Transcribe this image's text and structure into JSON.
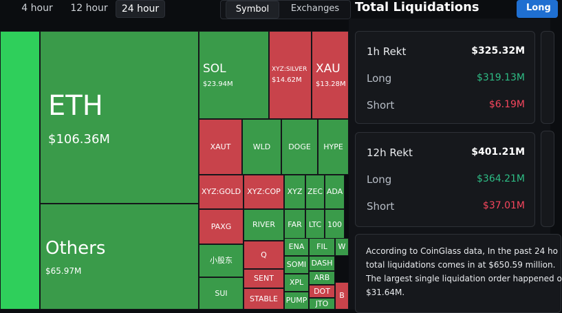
{
  "tabs": [
    "4 hour",
    "12 hour",
    "24 hour"
  ],
  "active_tab": 2,
  "toggle": [
    "Symbol",
    "Exchanges"
  ],
  "active_toggle": 0,
  "title": "Total Liquidations",
  "button": "Long",
  "treemap": [
    {
      "label": "ETH",
      "value": "$106.36M",
      "color": "#3a9b4a"
    },
    {
      "label": "Others",
      "value": "$65.97M",
      "color": "#3a9b4a"
    },
    {
      "label": "SOL",
      "value": "$23.94M",
      "color": "#3a9b4a"
    },
    {
      "label": "XYZ:SILVER",
      "value": "$14.62M",
      "color": "#c8434b"
    },
    {
      "label": "XAU",
      "value": "$13.28M",
      "color": "#c8434b"
    },
    {
      "label": "XAUT",
      "color": "#c8434b"
    },
    {
      "label": "WLD",
      "color": "#3a9b4a"
    },
    {
      "label": "DOGE",
      "color": "#3a9b4a"
    },
    {
      "label": "HYPE",
      "color": "#3a9b4a"
    },
    {
      "label": "XYZ:GOLD",
      "color": "#c8434b"
    },
    {
      "label": "XYZ:COP",
      "color": "#c8434b"
    },
    {
      "label": "XYZ",
      "color": "#3a9b4a"
    },
    {
      "label": "ZEC",
      "color": "#3a9b4a"
    },
    {
      "label": "ADA",
      "color": "#3a9b4a"
    },
    {
      "label": "PAXG",
      "color": "#c8434b"
    },
    {
      "label": "RIVER",
      "color": "#3a9b4a"
    },
    {
      "label": "FAR",
      "color": "#3a9b4a"
    },
    {
      "label": "LTC",
      "color": "#3a9b4a"
    },
    {
      "label": "100",
      "color": "#3a9b4a"
    },
    {
      "label": "小股东",
      "color": "#3a9b4a"
    },
    {
      "label": "Q",
      "color": "#c8434b"
    },
    {
      "label": "ENA",
      "color": "#3a9b4a"
    },
    {
      "label": "FIL",
      "color": "#3a9b4a"
    },
    {
      "label": "W",
      "color": "#3a9b4a"
    },
    {
      "label": "SOMI",
      "color": "#3a9b4a"
    },
    {
      "label": "DASH",
      "color": "#3a9b4a"
    },
    {
      "label": "SUI",
      "color": "#3a9b4a"
    },
    {
      "label": "SENT",
      "color": "#c8434b"
    },
    {
      "label": "XPL",
      "color": "#3a9b4a"
    },
    {
      "label": "ARB",
      "color": "#3a9b4a"
    },
    {
      "label": "STABLE",
      "color": "#c8434b"
    },
    {
      "label": "PUMP",
      "color": "#3a9b4a"
    },
    {
      "label": "DOT",
      "color": "#c8434b"
    },
    {
      "label": "JTO",
      "color": "#3a9b4a"
    },
    {
      "label": "B",
      "color": "#c8434b"
    }
  ],
  "cards": [
    {
      "rows": [
        {
          "label": "1h Rekt",
          "value": "$325.32M",
          "color": "#ffffff"
        },
        {
          "label": "Long",
          "value": "$319.13M",
          "color": "#2ebd85"
        },
        {
          "label": "Short",
          "value": "$6.19M",
          "color": "#f6465d"
        }
      ]
    },
    {
      "rows": [
        {
          "label": "12h Rekt",
          "value": "$401.21M",
          "color": "#ffffff"
        },
        {
          "label": "Long",
          "value": "$364.21M",
          "color": "#2ebd85"
        },
        {
          "label": "Short",
          "value": "$37.01M",
          "color": "#f6465d"
        }
      ]
    }
  ],
  "summary": [
    "According to CoinGlass data, In the past 24 ho",
    "total liquidations comes in at $650.59 million.",
    "The largest single liquidation order happened o",
    "$31.64M."
  ]
}
